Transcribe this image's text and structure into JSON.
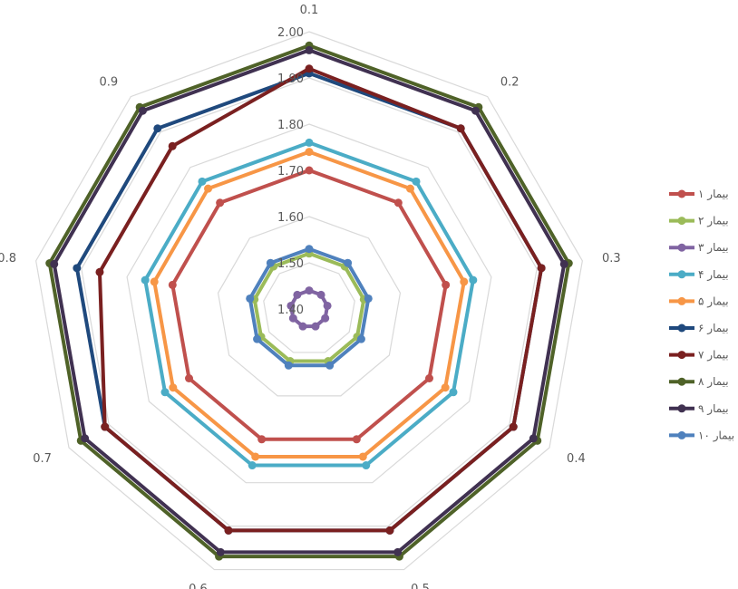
{
  "chart_data": {
    "type": "radar",
    "title": "",
    "categories": [
      "0.1",
      "0.2",
      "0.3",
      "0.4",
      "0.5",
      "0.6",
      "0.7",
      "0.8",
      "0.9"
    ],
    "rlim": [
      1.4,
      2.0
    ],
    "rticks": [
      "1.40",
      "1.50",
      "1.60",
      "1.70",
      "1.80",
      "1.90",
      "2.00"
    ],
    "grid": true,
    "legend_position": "right",
    "series": [
      {
        "name": "بیمار ۱",
        "color": "#C0504D",
        "values": [
          1.7,
          1.7,
          1.7,
          1.7,
          1.7,
          1.7,
          1.7,
          1.7,
          1.7
        ]
      },
      {
        "name": "بیمار ۲",
        "color": "#9BBB59",
        "values": [
          1.52,
          1.52,
          1.52,
          1.52,
          1.52,
          1.52,
          1.52,
          1.52,
          1.52
        ]
      },
      {
        "name": "بیمار ۳",
        "color": "#8064A2",
        "values": [
          1.44,
          1.44,
          1.44,
          1.44,
          1.44,
          1.44,
          1.44,
          1.44,
          1.44
        ]
      },
      {
        "name": "بیمار ۴",
        "color": "#4BACC6",
        "values": [
          1.76,
          1.76,
          1.76,
          1.76,
          1.76,
          1.76,
          1.76,
          1.76,
          1.76
        ]
      },
      {
        "name": "بیمار ۵",
        "color": "#F79646",
        "values": [
          1.74,
          1.74,
          1.74,
          1.74,
          1.74,
          1.74,
          1.74,
          1.74,
          1.74
        ]
      },
      {
        "name": "بیمار ۶",
        "color": "#1F497D",
        "values": [
          1.91,
          1.91,
          1.91,
          1.91,
          1.91,
          1.91,
          1.91,
          1.91,
          1.91
        ]
      },
      {
        "name": "بیمار ۷",
        "color": "#7A2020",
        "values": [
          1.92,
          1.91,
          1.91,
          1.91,
          1.91,
          1.91,
          1.91,
          1.86,
          1.86
        ]
      },
      {
        "name": "بیمار ۸",
        "color": "#4F6228",
        "values": [
          1.97,
          1.97,
          1.97,
          1.97,
          1.97,
          1.97,
          1.97,
          1.97,
          1.97
        ]
      },
      {
        "name": "بیمار ۹",
        "color": "#403151",
        "values": [
          1.96,
          1.96,
          1.96,
          1.96,
          1.96,
          1.96,
          1.96,
          1.96,
          1.96
        ]
      },
      {
        "name": "بیمار ۱۰",
        "color": "#4F81BD",
        "values": [
          1.53,
          1.53,
          1.53,
          1.53,
          1.53,
          1.53,
          1.53,
          1.53,
          1.53
        ]
      }
    ]
  }
}
